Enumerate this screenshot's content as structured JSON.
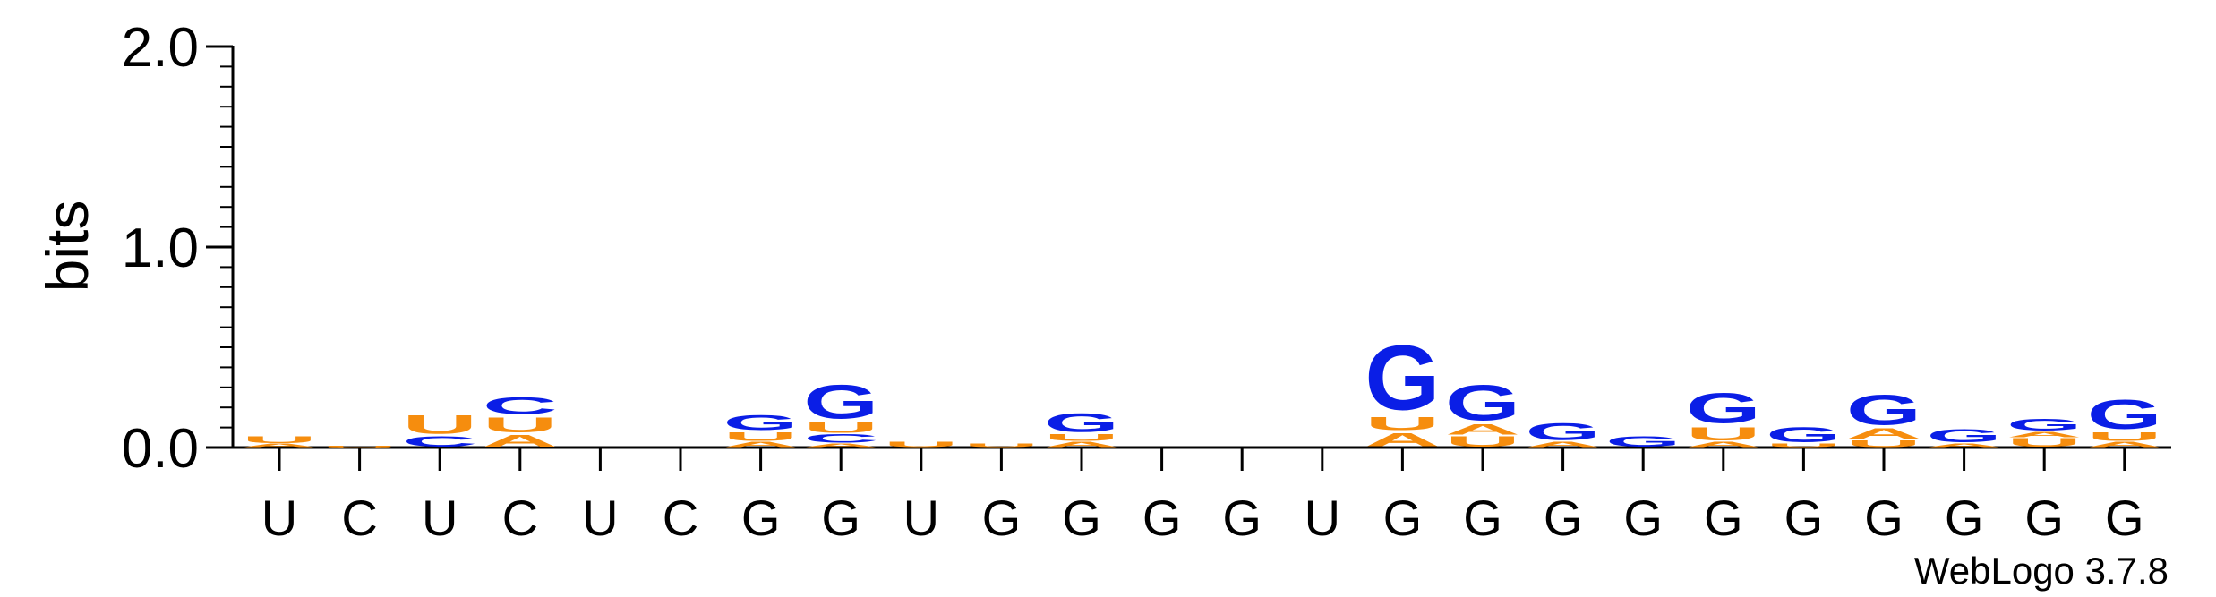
{
  "chart_data": {
    "type": "sequence_logo",
    "ylabel": "bits",
    "ylim": [
      0,
      2
    ],
    "yticks": [
      {
        "value": 0.0,
        "label": "0.0"
      },
      {
        "value": 1.0,
        "label": "1.0"
      },
      {
        "value": 2.0,
        "label": "2.0"
      }
    ],
    "positions": [
      {
        "label": "U",
        "stack": [
          {
            "letter": "A",
            "bits": 0.02
          },
          {
            "letter": "U",
            "bits": 0.04
          }
        ]
      },
      {
        "label": "C",
        "stack": [
          {
            "letter": "U",
            "bits": 0.01
          }
        ]
      },
      {
        "label": "U",
        "stack": [
          {
            "letter": "C",
            "bits": 0.06
          },
          {
            "letter": "U",
            "bits": 0.11
          }
        ]
      },
      {
        "label": "C",
        "stack": [
          {
            "letter": "A",
            "bits": 0.07
          },
          {
            "letter": "U",
            "bits": 0.09
          },
          {
            "letter": "C",
            "bits": 0.1
          }
        ]
      },
      {
        "label": "U",
        "stack": []
      },
      {
        "label": "C",
        "stack": []
      },
      {
        "label": "G",
        "stack": [
          {
            "letter": "A",
            "bits": 0.03
          },
          {
            "letter": "U",
            "bits": 0.05
          },
          {
            "letter": "G",
            "bits": 0.09
          }
        ]
      },
      {
        "label": "G",
        "stack": [
          {
            "letter": "A",
            "bits": 0.02
          },
          {
            "letter": "C",
            "bits": 0.05
          },
          {
            "letter": "U",
            "bits": 0.06
          },
          {
            "letter": "G",
            "bits": 0.2
          }
        ]
      },
      {
        "label": "U",
        "stack": [
          {
            "letter": "U",
            "bits": 0.03
          }
        ]
      },
      {
        "label": "G",
        "stack": [
          {
            "letter": "U",
            "bits": 0.02
          }
        ]
      },
      {
        "label": "G",
        "stack": [
          {
            "letter": "A",
            "bits": 0.03
          },
          {
            "letter": "U",
            "bits": 0.04
          },
          {
            "letter": "G",
            "bits": 0.11
          }
        ]
      },
      {
        "label": "G",
        "stack": []
      },
      {
        "label": "G",
        "stack": []
      },
      {
        "label": "U",
        "stack": []
      },
      {
        "label": "G",
        "stack": [
          {
            "letter": "A",
            "bits": 0.08
          },
          {
            "letter": "U",
            "bits": 0.08
          },
          {
            "letter": "G",
            "bits": 0.38
          }
        ]
      },
      {
        "label": "G",
        "stack": [
          {
            "letter": "U",
            "bits": 0.06
          },
          {
            "letter": "A",
            "bits": 0.06
          },
          {
            "letter": "G",
            "bits": 0.21
          }
        ]
      },
      {
        "label": "G",
        "stack": [
          {
            "letter": "A",
            "bits": 0.03
          },
          {
            "letter": "G",
            "bits": 0.1
          }
        ]
      },
      {
        "label": "G",
        "stack": [
          {
            "letter": "G",
            "bits": 0.06
          }
        ]
      },
      {
        "label": "G",
        "stack": [
          {
            "letter": "A",
            "bits": 0.03
          },
          {
            "letter": "U",
            "bits": 0.08
          },
          {
            "letter": "G",
            "bits": 0.18
          }
        ]
      },
      {
        "label": "G",
        "stack": [
          {
            "letter": "U",
            "bits": 0.02
          },
          {
            "letter": "G",
            "bits": 0.09
          }
        ]
      },
      {
        "label": "G",
        "stack": [
          {
            "letter": "U",
            "bits": 0.04
          },
          {
            "letter": "A",
            "bits": 0.06
          },
          {
            "letter": "G",
            "bits": 0.18
          }
        ]
      },
      {
        "label": "G",
        "stack": [
          {
            "letter": "A",
            "bits": 0.02
          },
          {
            "letter": "G",
            "bits": 0.08
          }
        ]
      },
      {
        "label": "G",
        "stack": [
          {
            "letter": "U",
            "bits": 0.05
          },
          {
            "letter": "A",
            "bits": 0.03
          },
          {
            "letter": "G",
            "bits": 0.07
          }
        ]
      },
      {
        "label": "G",
        "stack": [
          {
            "letter": "A",
            "bits": 0.03
          },
          {
            "letter": "U",
            "bits": 0.05
          },
          {
            "letter": "G",
            "bits": 0.17
          }
        ]
      }
    ],
    "colors": {
      "A": "#f68d0e",
      "U": "#f68d0e",
      "C": "#0a1ee6",
      "G": "#0a1ee6"
    },
    "credit": "WebLogo 3.7.8"
  }
}
